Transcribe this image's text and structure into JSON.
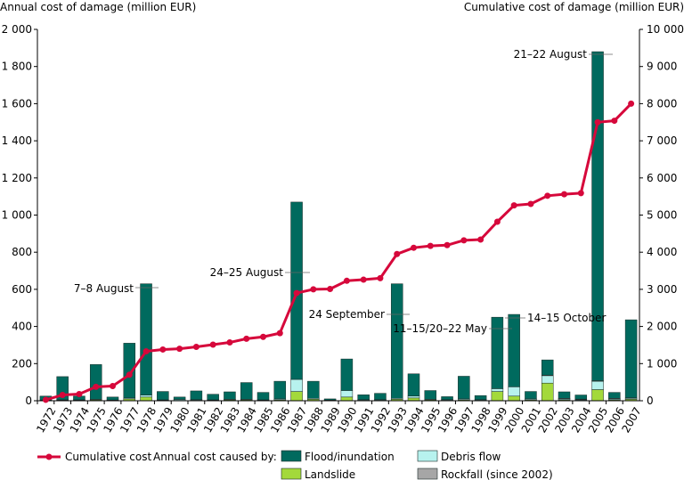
{
  "chart_data": {
    "type": "bar+line",
    "title": "",
    "left_axis_label": "Annual cost of damage (million EUR)",
    "right_axis_label": "Cumulative cost of damage  (million EUR)",
    "left_ylim": [
      0,
      2000
    ],
    "right_ylim": [
      0,
      10000
    ],
    "left_ticks": [
      "0",
      "200",
      "400",
      "600",
      "800",
      "1 000",
      "1 200",
      "1 400",
      "1 600",
      "1 800",
      "2 000"
    ],
    "right_ticks": [
      "0",
      "1 000",
      "2 000",
      "3 000",
      "4 000",
      "5 000",
      "6 000",
      "7 000",
      "8 000",
      "9 000",
      "10 000"
    ],
    "categories": [
      "1972",
      "1973",
      "1974",
      "1975",
      "1976",
      "1977",
      "1978",
      "1979",
      "1980",
      "1981",
      "1982",
      "1983",
      "1984",
      "1985",
      "1986",
      "1987",
      "1988",
      "1989",
      "1990",
      "1991",
      "1992",
      "1993",
      "1994",
      "1995",
      "1996",
      "1997",
      "1998",
      "1999",
      "2000",
      "2001",
      "2002",
      "2003",
      "2004",
      "2005",
      "2006",
      "2007"
    ],
    "series": [
      {
        "name": "Landslide",
        "color": "#a3d93b",
        "values": [
          2,
          3,
          3,
          5,
          2,
          10,
          20,
          3,
          2,
          3,
          3,
          5,
          5,
          3,
          5,
          50,
          8,
          2,
          20,
          3,
          3,
          8,
          15,
          5,
          3,
          5,
          3,
          50,
          25,
          5,
          95,
          5,
          3,
          60,
          5,
          8
        ]
      },
      {
        "name": "Debris flow",
        "color": "#b7f2ee",
        "values": [
          2,
          2,
          2,
          3,
          2,
          5,
          10,
          2,
          5,
          3,
          2,
          3,
          3,
          2,
          5,
          65,
          5,
          2,
          35,
          3,
          3,
          5,
          10,
          3,
          3,
          5,
          3,
          15,
          50,
          5,
          40,
          5,
          3,
          45,
          5,
          5
        ]
      },
      {
        "name": "Rockfall (since 2002)",
        "color": "#a6a6a6",
        "values": [
          0,
          0,
          0,
          0,
          0,
          0,
          0,
          0,
          0,
          0,
          0,
          0,
          0,
          0,
          0,
          0,
          0,
          0,
          0,
          0,
          0,
          0,
          0,
          0,
          0,
          0,
          0,
          0,
          0,
          0,
          3,
          3,
          3,
          3,
          3,
          3
        ]
      },
      {
        "name": "Flood/inundation",
        "color": "#006a5e",
        "values": [
          21,
          125,
          20,
          187,
          16,
          295,
          600,
          45,
          13,
          47,
          30,
          40,
          90,
          40,
          95,
          955,
          92,
          6,
          170,
          26,
          34,
          617,
          120,
          47,
          16,
          122,
          22,
          385,
          390,
          40,
          82,
          35,
          22,
          1772,
          32,
          420
        ]
      }
    ],
    "cumulative": {
      "name": "Cumulative cost",
      "color": "#d6083b",
      "values": [
        25,
        155,
        180,
        375,
        395,
        700,
        1330,
        1380,
        1400,
        1450,
        1510,
        1570,
        1670,
        1720,
        1820,
        2900,
        3000,
        3010,
        3230,
        3260,
        3300,
        3950,
        4120,
        4170,
        4190,
        4320,
        4340,
        4820,
        5260,
        5300,
        5520,
        5560,
        5590,
        7500,
        7540,
        8000
      ]
    },
    "annotations": [
      {
        "text": "7–8 August",
        "year": "1978"
      },
      {
        "text": "24–25 August",
        "year": "1987"
      },
      {
        "text": "24 September",
        "year": "1993"
      },
      {
        "text": "11–15/20–22 May",
        "year": "1999"
      },
      {
        "text": "14–15 October",
        "year": "2000"
      },
      {
        "text": "21–22 August",
        "year": "2005"
      }
    ],
    "legend": {
      "cumulative_label": "Cumulative cost",
      "caused_by_label": "Annual cost caused by:",
      "placement": "bottom"
    },
    "grid": false
  }
}
